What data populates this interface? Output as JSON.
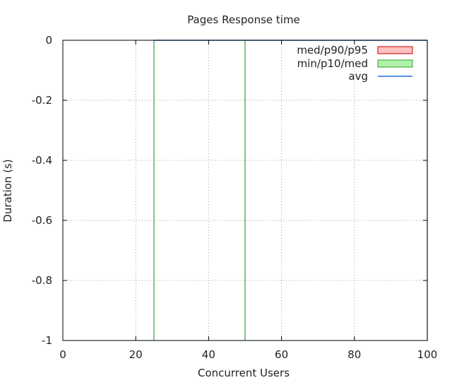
{
  "chart_data": {
    "type": "area",
    "title": "Pages Response time",
    "xlabel": "Concurrent Users",
    "ylabel": "Duration (s)",
    "xlim": [
      0,
      100
    ],
    "ylim": [
      -1,
      0
    ],
    "xticks": [
      0,
      20,
      40,
      60,
      80,
      100
    ],
    "yticks": [
      0,
      -0.2,
      -0.4,
      -0.6,
      -0.8,
      -1
    ],
    "xtick_labels": [
      "0",
      "20",
      "40",
      "60",
      "80",
      "100"
    ],
    "ytick_labels": [
      "0",
      "-0.2",
      "-0.4",
      "-0.6",
      "-0.8",
      "-1"
    ],
    "grid": true,
    "legend_position": "top-right",
    "legend": [
      {
        "name": "med/p90/p95",
        "kind": "box",
        "fill": "#ffc0c0",
        "stroke": "#c00000"
      },
      {
        "name": "min/p10/med",
        "kind": "box",
        "fill": "#b0f0a8",
        "stroke": "#30a030"
      },
      {
        "name": "avg",
        "kind": "line",
        "stroke": "#1a6fd8"
      }
    ],
    "series": [
      {
        "name": "min/p10/med",
        "kind": "vertical-marks",
        "color": "#30a030",
        "x": [
          25,
          50,
          100
        ]
      },
      {
        "name": "avg",
        "kind": "line",
        "color": "#1a6fd8",
        "points": [
          [
            25,
            0
          ],
          [
            50,
            0
          ],
          [
            100,
            0
          ]
        ]
      }
    ]
  }
}
